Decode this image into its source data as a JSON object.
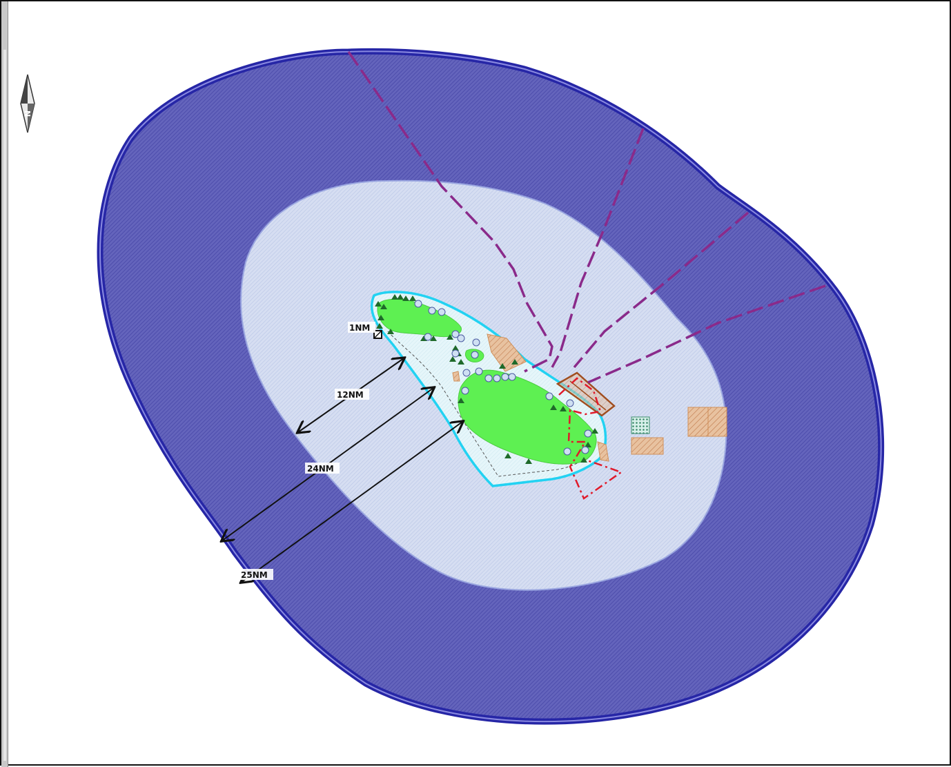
{
  "map": {
    "north_arrow": {
      "letter": "N"
    },
    "distance_labels": {
      "one_nm": "1NM",
      "twelve_nm": "12NM",
      "twenty_four_nm": "24NM",
      "twenty_five_nm": "25NM"
    },
    "colors": {
      "outer_zone": "#5a5ab4",
      "outer_border": "#2a2aa8",
      "territorial_zone": "#d4ddf2",
      "inner_water": "#e4f5fa",
      "coast_line": "#20d0f0",
      "land": "#5ef052",
      "route_line": "#8a2a8a",
      "restricted_line": "#e0202a",
      "anchorage_fill": "#e4b08a",
      "anchorage_line": "#b0562a"
    }
  }
}
